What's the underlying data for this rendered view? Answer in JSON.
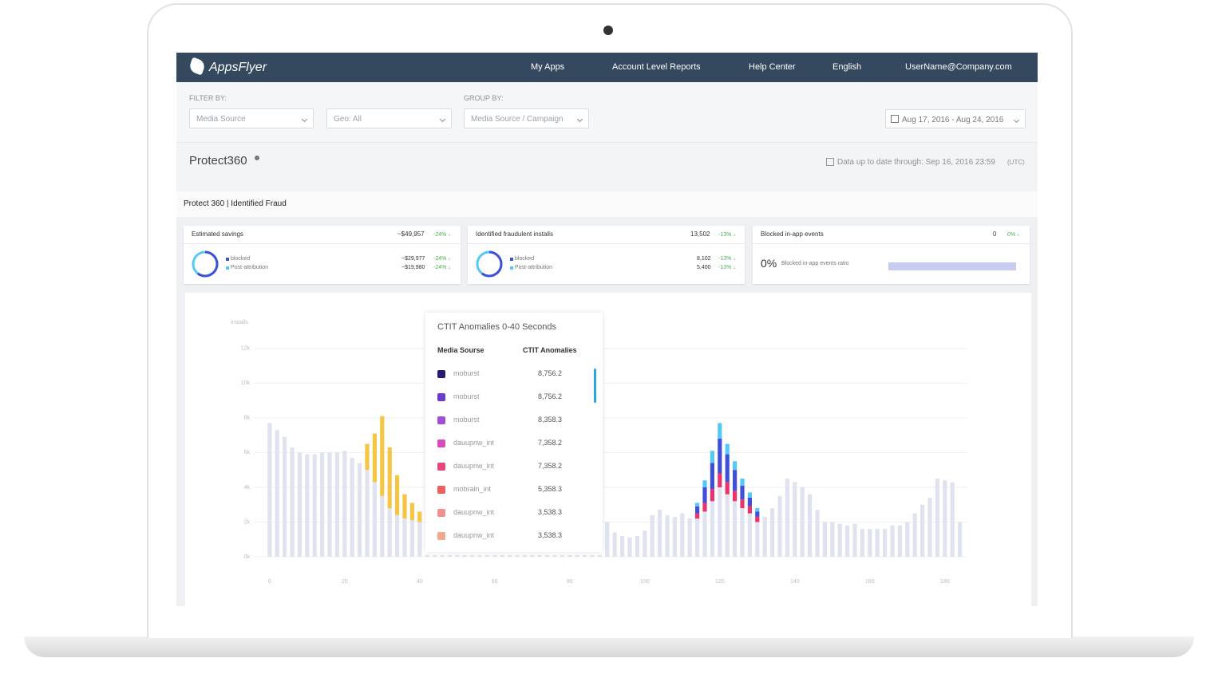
{
  "nav": {
    "logo": "AppsFlyer",
    "items": [
      "My Apps",
      "Account Level Reports",
      "Help Center",
      "English",
      "UserName@Company.com"
    ]
  },
  "filters": {
    "filter_label": "FILTER BY:",
    "media_source": "Media Source",
    "geo": "Geo: All",
    "group_label": "GROUP BY:",
    "group": "Media Source / Campaign",
    "date_range": "Aug 17, 2016 - Aug 24, 2016"
  },
  "header": {
    "title": "Protect360",
    "updated": "Data up to date through: Sep 16, 2016 23:59",
    "timezone": "(UTC)",
    "section": "Protect 360 | Identified Fraud"
  },
  "cards": [
    {
      "title": "Estimated savings",
      "total": "~$49,957",
      "change": "-24% ↓",
      "rows": [
        {
          "label": "blocked",
          "value": "~$29,977",
          "change": "-24% ↓"
        },
        {
          "label": "Post-attribution",
          "value": "~$19,980",
          "change": "-24% ↓"
        }
      ]
    },
    {
      "title": "Identified fraudulent installs",
      "total": "13,502",
      "change": "-13% ↓",
      "rows": [
        {
          "label": "blocked",
          "value": "8,102",
          "change": "-13% ↓"
        },
        {
          "label": "Post-attribution",
          "value": "5,400",
          "change": "-13% ↓"
        }
      ]
    },
    {
      "title": "Blocked in-app events",
      "total": "0",
      "change": "0% ↓",
      "ratio": "0%",
      "ratio_label": "Blocked in-app events ratio"
    }
  ],
  "chart_data": {
    "type": "bar",
    "y_label": "installs",
    "xlim": [
      -4,
      186
    ],
    "xticks": [
      0,
      20,
      40,
      60,
      80,
      100,
      120,
      140,
      160,
      180
    ],
    "ylim": [
      0,
      13000
    ],
    "yticks": [
      {
        "value": 0,
        "label": "0k"
      },
      {
        "value": 2000,
        "label": "2k"
      },
      {
        "value": 4000,
        "label": "4k"
      },
      {
        "value": 6000,
        "label": "6k"
      },
      {
        "value": 8000,
        "label": "8k"
      },
      {
        "value": 10000,
        "label": "10k"
      },
      {
        "value": 12000,
        "label": "12k"
      }
    ],
    "grid": true,
    "series": [
      {
        "color": "#dfe2ef",
        "x": [
          0,
          2,
          4,
          6,
          8,
          10,
          12,
          14,
          16,
          18,
          20,
          22,
          24,
          26,
          28,
          30,
          32,
          34,
          36,
          38,
          40,
          42,
          44,
          46,
          48,
          50,
          52,
          54,
          56,
          58,
          60,
          62,
          64,
          66,
          68,
          70,
          72,
          74,
          76,
          78,
          80,
          82,
          84,
          86,
          88,
          90,
          92,
          94,
          96,
          98,
          100,
          102,
          104,
          106,
          108,
          110,
          112,
          114,
          116,
          118,
          120,
          122,
          124,
          126,
          128,
          130,
          132,
          134,
          136,
          138,
          140,
          142,
          144,
          146,
          148,
          150,
          152,
          154,
          156,
          158,
          160,
          162,
          164,
          166,
          168,
          170,
          172,
          174,
          176,
          178,
          180,
          182,
          184
        ],
        "values": [
          7700,
          7300,
          6900,
          6300,
          6000,
          5900,
          5900,
          6000,
          6000,
          6000,
          6100,
          5700,
          5400,
          5000,
          4300,
          3500,
          2800,
          2400,
          2200,
          2100,
          2000,
          100,
          100,
          100,
          100,
          100,
          100,
          100,
          100,
          100,
          100,
          100,
          100,
          100,
          100,
          100,
          100,
          100,
          100,
          100,
          100,
          100,
          100,
          100,
          100,
          2000,
          1400,
          1200,
          1100,
          1200,
          1500,
          2400,
          2700,
          2400,
          2300,
          2500,
          2200,
          2200,
          2600,
          3200,
          4000,
          3600,
          3200,
          2800,
          2500,
          2000,
          2300,
          2800,
          3500,
          4500,
          4300,
          4000,
          3600,
          2700,
          2000,
          2000,
          1900,
          1800,
          1900,
          1600,
          1600,
          1600,
          1600,
          1800,
          1800,
          2000,
          2500,
          3000,
          3400,
          4500,
          4400,
          4300,
          2000
        ]
      },
      {
        "color": "#f7c544",
        "x": [
          26,
          28,
          30,
          32,
          34,
          36,
          38,
          40
        ],
        "values": [
          1500,
          2800,
          4600,
          3500,
          2300,
          1400,
          1000,
          600
        ]
      },
      {
        "color": "#e8336e",
        "x": [
          114,
          116,
          118,
          120,
          122,
          124,
          126,
          128,
          130
        ],
        "values": [
          300,
          500,
          700,
          800,
          700,
          600,
          500,
          400,
          300
        ]
      },
      {
        "color": "#3f4fd8",
        "x": [
          114,
          116,
          118,
          120,
          122,
          124,
          126,
          128,
          130
        ],
        "values": [
          400,
          900,
          1500,
          2000,
          1600,
          1200,
          800,
          500,
          300
        ]
      },
      {
        "color": "#56c8f5",
        "x": [
          114,
          116,
          118,
          120,
          122,
          124,
          126,
          128,
          130
        ],
        "values": [
          200,
          400,
          700,
          900,
          600,
          500,
          400,
          300,
          200
        ]
      }
    ]
  },
  "tooltip": {
    "title": "CTIT Anomalies 0-40 Seconds",
    "headers": [
      "Media Sourse",
      "CTIT Anomalies"
    ],
    "rows": [
      {
        "color": "#2a1a6e",
        "name": "moburst",
        "value": "8,756.2"
      },
      {
        "color": "#6a3bd1",
        "name": "moburst",
        "value": "8,756.2"
      },
      {
        "color": "#a04fd9",
        "name": "moburst",
        "value": "8,358.3"
      },
      {
        "color": "#d94bb8",
        "name": "dauupnw_int",
        "value": "7,358.2"
      },
      {
        "color": "#e5477f",
        "name": "dauupnw_int",
        "value": "7,358.2"
      },
      {
        "color": "#ec6060",
        "name": "mobrain_int",
        "value": "5,358.3"
      },
      {
        "color": "#f29090",
        "name": "dauupnw_int",
        "value": "3,538.3"
      },
      {
        "color": "#f0a88e",
        "name": "dauupnw_int",
        "value": "3,538.3"
      }
    ]
  }
}
